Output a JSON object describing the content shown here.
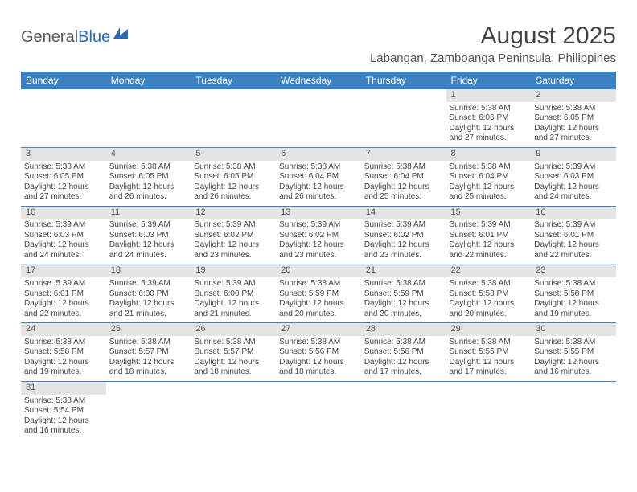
{
  "logo": {
    "text1": "General",
    "text2": "Blue"
  },
  "title": "August 2025",
  "location": "Labangan, Zamboanga Peninsula, Philippines",
  "weekdays": [
    "Sunday",
    "Monday",
    "Tuesday",
    "Wednesday",
    "Thursday",
    "Friday",
    "Saturday"
  ],
  "colors": {
    "header_bg": "#3b82c4",
    "header_fg": "#ffffff",
    "daynum_bg": "#e4e4e4",
    "row_border": "#3b82c4",
    "text": "#444444"
  },
  "cells": [
    [
      {
        "n": "",
        "lines": []
      },
      {
        "n": "",
        "lines": []
      },
      {
        "n": "",
        "lines": []
      },
      {
        "n": "",
        "lines": []
      },
      {
        "n": "",
        "lines": []
      },
      {
        "n": "1",
        "lines": [
          "Sunrise: 5:38 AM",
          "Sunset: 6:06 PM",
          "Daylight: 12 hours",
          "and 27 minutes."
        ]
      },
      {
        "n": "2",
        "lines": [
          "Sunrise: 5:38 AM",
          "Sunset: 6:05 PM",
          "Daylight: 12 hours",
          "and 27 minutes."
        ]
      }
    ],
    [
      {
        "n": "3",
        "lines": [
          "Sunrise: 5:38 AM",
          "Sunset: 6:05 PM",
          "Daylight: 12 hours",
          "and 27 minutes."
        ]
      },
      {
        "n": "4",
        "lines": [
          "Sunrise: 5:38 AM",
          "Sunset: 6:05 PM",
          "Daylight: 12 hours",
          "and 26 minutes."
        ]
      },
      {
        "n": "5",
        "lines": [
          "Sunrise: 5:38 AM",
          "Sunset: 6:05 PM",
          "Daylight: 12 hours",
          "and 26 minutes."
        ]
      },
      {
        "n": "6",
        "lines": [
          "Sunrise: 5:38 AM",
          "Sunset: 6:04 PM",
          "Daylight: 12 hours",
          "and 26 minutes."
        ]
      },
      {
        "n": "7",
        "lines": [
          "Sunrise: 5:38 AM",
          "Sunset: 6:04 PM",
          "Daylight: 12 hours",
          "and 25 minutes."
        ]
      },
      {
        "n": "8",
        "lines": [
          "Sunrise: 5:38 AM",
          "Sunset: 6:04 PM",
          "Daylight: 12 hours",
          "and 25 minutes."
        ]
      },
      {
        "n": "9",
        "lines": [
          "Sunrise: 5:39 AM",
          "Sunset: 6:03 PM",
          "Daylight: 12 hours",
          "and 24 minutes."
        ]
      }
    ],
    [
      {
        "n": "10",
        "lines": [
          "Sunrise: 5:39 AM",
          "Sunset: 6:03 PM",
          "Daylight: 12 hours",
          "and 24 minutes."
        ]
      },
      {
        "n": "11",
        "lines": [
          "Sunrise: 5:39 AM",
          "Sunset: 6:03 PM",
          "Daylight: 12 hours",
          "and 24 minutes."
        ]
      },
      {
        "n": "12",
        "lines": [
          "Sunrise: 5:39 AM",
          "Sunset: 6:02 PM",
          "Daylight: 12 hours",
          "and 23 minutes."
        ]
      },
      {
        "n": "13",
        "lines": [
          "Sunrise: 5:39 AM",
          "Sunset: 6:02 PM",
          "Daylight: 12 hours",
          "and 23 minutes."
        ]
      },
      {
        "n": "14",
        "lines": [
          "Sunrise: 5:39 AM",
          "Sunset: 6:02 PM",
          "Daylight: 12 hours",
          "and 23 minutes."
        ]
      },
      {
        "n": "15",
        "lines": [
          "Sunrise: 5:39 AM",
          "Sunset: 6:01 PM",
          "Daylight: 12 hours",
          "and 22 minutes."
        ]
      },
      {
        "n": "16",
        "lines": [
          "Sunrise: 5:39 AM",
          "Sunset: 6:01 PM",
          "Daylight: 12 hours",
          "and 22 minutes."
        ]
      }
    ],
    [
      {
        "n": "17",
        "lines": [
          "Sunrise: 5:39 AM",
          "Sunset: 6:01 PM",
          "Daylight: 12 hours",
          "and 22 minutes."
        ]
      },
      {
        "n": "18",
        "lines": [
          "Sunrise: 5:39 AM",
          "Sunset: 6:00 PM",
          "Daylight: 12 hours",
          "and 21 minutes."
        ]
      },
      {
        "n": "19",
        "lines": [
          "Sunrise: 5:39 AM",
          "Sunset: 6:00 PM",
          "Daylight: 12 hours",
          "and 21 minutes."
        ]
      },
      {
        "n": "20",
        "lines": [
          "Sunrise: 5:38 AM",
          "Sunset: 5:59 PM",
          "Daylight: 12 hours",
          "and 20 minutes."
        ]
      },
      {
        "n": "21",
        "lines": [
          "Sunrise: 5:38 AM",
          "Sunset: 5:59 PM",
          "Daylight: 12 hours",
          "and 20 minutes."
        ]
      },
      {
        "n": "22",
        "lines": [
          "Sunrise: 5:38 AM",
          "Sunset: 5:58 PM",
          "Daylight: 12 hours",
          "and 20 minutes."
        ]
      },
      {
        "n": "23",
        "lines": [
          "Sunrise: 5:38 AM",
          "Sunset: 5:58 PM",
          "Daylight: 12 hours",
          "and 19 minutes."
        ]
      }
    ],
    [
      {
        "n": "24",
        "lines": [
          "Sunrise: 5:38 AM",
          "Sunset: 5:58 PM",
          "Daylight: 12 hours",
          "and 19 minutes."
        ]
      },
      {
        "n": "25",
        "lines": [
          "Sunrise: 5:38 AM",
          "Sunset: 5:57 PM",
          "Daylight: 12 hours",
          "and 18 minutes."
        ]
      },
      {
        "n": "26",
        "lines": [
          "Sunrise: 5:38 AM",
          "Sunset: 5:57 PM",
          "Daylight: 12 hours",
          "and 18 minutes."
        ]
      },
      {
        "n": "27",
        "lines": [
          "Sunrise: 5:38 AM",
          "Sunset: 5:56 PM",
          "Daylight: 12 hours",
          "and 18 minutes."
        ]
      },
      {
        "n": "28",
        "lines": [
          "Sunrise: 5:38 AM",
          "Sunset: 5:56 PM",
          "Daylight: 12 hours",
          "and 17 minutes."
        ]
      },
      {
        "n": "29",
        "lines": [
          "Sunrise: 5:38 AM",
          "Sunset: 5:55 PM",
          "Daylight: 12 hours",
          "and 17 minutes."
        ]
      },
      {
        "n": "30",
        "lines": [
          "Sunrise: 5:38 AM",
          "Sunset: 5:55 PM",
          "Daylight: 12 hours",
          "and 16 minutes."
        ]
      }
    ],
    [
      {
        "n": "31",
        "lines": [
          "Sunrise: 5:38 AM",
          "Sunset: 5:54 PM",
          "Daylight: 12 hours",
          "and 16 minutes."
        ]
      },
      {
        "n": "",
        "lines": []
      },
      {
        "n": "",
        "lines": []
      },
      {
        "n": "",
        "lines": []
      },
      {
        "n": "",
        "lines": []
      },
      {
        "n": "",
        "lines": []
      },
      {
        "n": "",
        "lines": []
      }
    ]
  ]
}
